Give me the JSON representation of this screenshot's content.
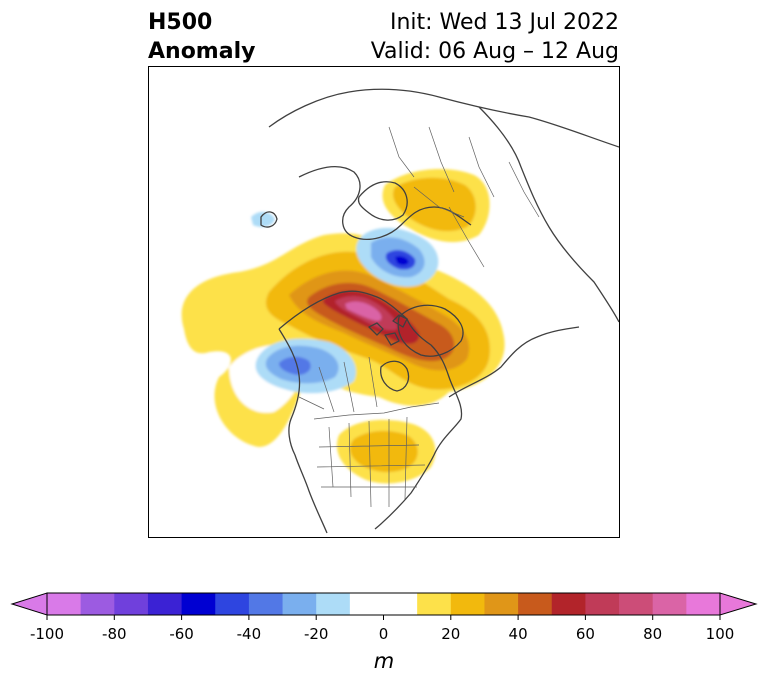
{
  "header": {
    "title_line1": "H500",
    "title_line2": "Anomaly",
    "init": "Init: Wed 13 Jul 2022",
    "valid": "Valid: 06 Aug – 12 Aug"
  },
  "map": {
    "projection": "north-polar-stereographic",
    "region": "North America / Arctic",
    "variable": "500 hPa geopotential height anomaly",
    "anomaly_features": [
      {
        "kind": "positive",
        "location": "Northwest Territories / Beaufort Sea",
        "peak_m": 80
      },
      {
        "kind": "positive",
        "location": "Greenland / Baffin Island",
        "peak_m": 50
      },
      {
        "kind": "positive",
        "location": "Scandinavia / Western Russia",
        "peak_m": 30
      },
      {
        "kind": "positive",
        "location": "Central United States",
        "peak_m": 30
      },
      {
        "kind": "positive",
        "location": "Northeast Pacific",
        "peak_m": 10
      },
      {
        "kind": "negative",
        "location": "Gulf of Alaska",
        "peak_m": -50
      },
      {
        "kind": "negative",
        "location": "Kara / Barents Sea",
        "peak_m": -60
      },
      {
        "kind": "negative",
        "location": "Northern Europe",
        "peak_m": -20
      }
    ]
  },
  "colorbar": {
    "ticks": [
      "-100",
      "-80",
      "-60",
      "-40",
      "-20",
      "0",
      "20",
      "40",
      "60",
      "80",
      "100"
    ],
    "unit": "m",
    "bounds": [
      -100,
      100
    ],
    "step": 10,
    "extend": "both",
    "colors": [
      "#d97ae8",
      "#9c5be1",
      "#7040dc",
      "#3b22d4",
      "#0000d2",
      "#2e45e0",
      "#5278e6",
      "#7aafee",
      "#addcf7",
      "#ffffff",
      "#ffffff",
      "#fde14a",
      "#f2b90d",
      "#e09618",
      "#c85a1c",
      "#b2242a",
      "#c03b58",
      "#cc4d78",
      "#da64a6",
      "#e878da"
    ]
  }
}
